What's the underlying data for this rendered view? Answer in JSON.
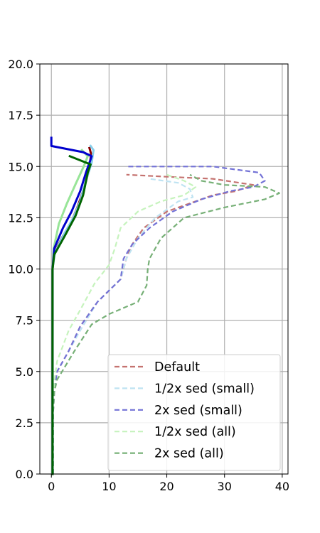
{
  "chart_data": {
    "type": "line",
    "title": "",
    "xlabel": "",
    "ylabel": "",
    "xlim": [
      -2,
      41
    ],
    "ylim": [
      0,
      20
    ],
    "grid": true,
    "x_ticks": [
      0,
      10,
      20,
      30,
      40
    ],
    "x_tick_labels": [
      "0",
      "10",
      "20",
      "30",
      "40"
    ],
    "y_ticks": [
      0,
      2.5,
      5,
      7.5,
      10,
      12.5,
      15,
      17.5,
      20
    ],
    "y_tick_labels": [
      "0.0",
      "2.5",
      "5.0",
      "7.5",
      "10.0",
      "12.5",
      "15.0",
      "17.5",
      "20.0"
    ],
    "legend_position": "lower-right",
    "series": [
      {
        "name": "Default",
        "style": "dashed",
        "color": "#c57370",
        "points": [
          [
            0.3,
            0
          ],
          [
            0.3,
            3
          ],
          [
            0.5,
            4
          ],
          [
            1,
            5
          ],
          [
            3,
            6
          ],
          [
            5,
            7.2
          ],
          [
            8,
            8.4
          ],
          [
            12,
            9.5
          ],
          [
            13,
            10.5
          ],
          [
            14,
            11.2
          ],
          [
            16,
            12
          ],
          [
            20,
            12.8
          ],
          [
            25,
            13.3
          ],
          [
            28,
            13.6
          ],
          [
            32,
            13.8
          ],
          [
            35,
            14.1
          ],
          [
            28,
            14.4
          ],
          [
            20,
            14.5
          ],
          [
            13,
            14.6
          ]
        ]
      },
      {
        "name": "1/2x sed (small)",
        "style": "dashed",
        "color": "#bfe3f2",
        "points": [
          [
            0.3,
            0
          ],
          [
            0.3,
            3
          ],
          [
            0.5,
            4
          ],
          [
            1,
            5
          ],
          [
            3,
            6
          ],
          [
            5,
            7
          ],
          [
            8,
            8.4
          ],
          [
            12,
            9.5
          ],
          [
            13,
            10.5
          ],
          [
            15,
            11.5
          ],
          [
            18,
            12.5
          ],
          [
            22,
            13.3
          ],
          [
            24.5,
            13.5
          ],
          [
            24,
            13.9
          ],
          [
            22,
            14.2
          ],
          [
            17,
            14.4
          ]
        ]
      },
      {
        "name": "2x sed (small)",
        "style": "dashed",
        "color": "#7372d6",
        "points": [
          [
            0.3,
            0
          ],
          [
            0.3,
            3
          ],
          [
            0.5,
            4
          ],
          [
            1,
            5
          ],
          [
            3,
            6
          ],
          [
            5,
            7.2
          ],
          [
            8,
            8.4
          ],
          [
            12,
            9.5
          ],
          [
            12.5,
            10.5
          ],
          [
            14,
            11.2
          ],
          [
            17,
            12
          ],
          [
            21,
            12.8
          ],
          [
            26,
            13.4
          ],
          [
            31,
            13.8
          ],
          [
            35,
            14
          ],
          [
            37,
            14.3
          ],
          [
            36,
            14.7
          ],
          [
            28,
            15
          ],
          [
            13,
            15
          ]
        ]
      },
      {
        "name": "1/2x sed (all)",
        "style": "dashed",
        "color": "#c6f3bd",
        "points": [
          [
            0.3,
            0
          ],
          [
            0.3,
            3
          ],
          [
            0.5,
            4.5
          ],
          [
            1,
            5.5
          ],
          [
            3,
            7
          ],
          [
            5,
            8
          ],
          [
            7.5,
            9.3
          ],
          [
            10,
            10.2
          ],
          [
            11,
            11
          ],
          [
            12,
            12
          ],
          [
            15,
            12.8
          ],
          [
            19,
            13.3
          ],
          [
            23,
            13.6
          ],
          [
            25,
            14
          ],
          [
            23,
            14.3
          ],
          [
            20,
            14.6
          ]
        ]
      },
      {
        "name": "2x sed (all)",
        "style": "dashed",
        "color": "#77b077",
        "points": [
          [
            0.3,
            0
          ],
          [
            0.3,
            3
          ],
          [
            0.5,
            4
          ],
          [
            1,
            4.6
          ],
          [
            4,
            6
          ],
          [
            7,
            7.3
          ],
          [
            10,
            7.8
          ],
          [
            15,
            8.4
          ],
          [
            16.5,
            9.2
          ],
          [
            16.7,
            10
          ],
          [
            17,
            10.5
          ],
          [
            19,
            11.5
          ],
          [
            23,
            12.5
          ],
          [
            30,
            13
          ],
          [
            37,
            13.4
          ],
          [
            39.5,
            13.7
          ],
          [
            37,
            14
          ],
          [
            30,
            14.1
          ],
          [
            26,
            14.3
          ],
          [
            24,
            14.6
          ]
        ]
      },
      {
        "name": "",
        "style": "solid",
        "color": "#8b0000",
        "points": [
          [
            0.2,
            0
          ],
          [
            0.2,
            3
          ],
          [
            0.2,
            7
          ],
          [
            0.2,
            10
          ],
          [
            0.5,
            10.8
          ],
          [
            2,
            11.6
          ],
          [
            3.5,
            12.3
          ],
          [
            4.5,
            13
          ],
          [
            5.5,
            13.8
          ],
          [
            6.5,
            14.8
          ],
          [
            6.9,
            15.6
          ],
          [
            6.6,
            15.9
          ]
        ]
      },
      {
        "name": "",
        "style": "solid",
        "color": "#87ceeb",
        "points": [
          [
            0.2,
            0
          ],
          [
            0.2,
            3
          ],
          [
            0.2,
            7
          ],
          [
            0.2,
            10
          ],
          [
            0.6,
            10.8
          ],
          [
            2.2,
            11.7
          ],
          [
            3.8,
            12.5
          ],
          [
            5,
            13.3
          ],
          [
            6,
            14.3
          ],
          [
            7,
            15.2
          ],
          [
            7.3,
            15.8
          ],
          [
            6.8,
            16
          ]
        ]
      },
      {
        "name": "",
        "style": "solid",
        "color": "#98e598",
        "points": [
          [
            0.2,
            0
          ],
          [
            0.2,
            3
          ],
          [
            0.2,
            7
          ],
          [
            0.2,
            10
          ],
          [
            0.4,
            11
          ],
          [
            1.3,
            12.2
          ],
          [
            2.7,
            13.2
          ],
          [
            4.3,
            14.2
          ],
          [
            5.6,
            15
          ],
          [
            6.3,
            15.5
          ],
          [
            5.3,
            15.8
          ]
        ]
      },
      {
        "name": "",
        "style": "solid",
        "color": "#0000cd",
        "points": [
          [
            0.2,
            0
          ],
          [
            0.2,
            3
          ],
          [
            0.2,
            7
          ],
          [
            0.2,
            10
          ],
          [
            0.5,
            11
          ],
          [
            2,
            12
          ],
          [
            3.5,
            12.8
          ],
          [
            5,
            13.8
          ],
          [
            6,
            14.7
          ],
          [
            7,
            15.5
          ],
          [
            5.5,
            15.7
          ],
          [
            0,
            16
          ],
          [
            0,
            16.4
          ]
        ]
      },
      {
        "name": "",
        "style": "solid",
        "color": "#006400",
        "points": [
          [
            0.2,
            0
          ],
          [
            0.2,
            3
          ],
          [
            0.2,
            7
          ],
          [
            0.2,
            10
          ],
          [
            0.5,
            10.7
          ],
          [
            2.3,
            11.6
          ],
          [
            4.2,
            12.6
          ],
          [
            5.5,
            13.6
          ],
          [
            6.3,
            14.7
          ],
          [
            6.8,
            15.1
          ],
          [
            3.2,
            15.5
          ]
        ]
      }
    ]
  }
}
